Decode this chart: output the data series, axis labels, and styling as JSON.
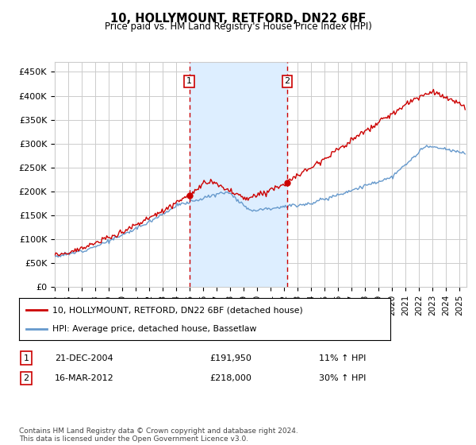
{
  "title": "10, HOLLYMOUNT, RETFORD, DN22 6BF",
  "subtitle": "Price paid vs. HM Land Registry's House Price Index (HPI)",
  "ylabel_ticks": [
    "£0",
    "£50K",
    "£100K",
    "£150K",
    "£200K",
    "£250K",
    "£300K",
    "£350K",
    "£400K",
    "£450K"
  ],
  "ytick_values": [
    0,
    50000,
    100000,
    150000,
    200000,
    250000,
    300000,
    350000,
    400000,
    450000
  ],
  "ylim": [
    0,
    470000
  ],
  "xlim_start": 1995.0,
  "xlim_end": 2025.5,
  "sale1_x": 2004.97,
  "sale1_y": 191950,
  "sale2_x": 2012.21,
  "sale2_y": 218000,
  "shade_x1": 2004.97,
  "shade_x2": 2012.21,
  "legend_red": "10, HOLLYMOUNT, RETFORD, DN22 6BF (detached house)",
  "legend_blue": "HPI: Average price, detached house, Bassetlaw",
  "table_row1_num": "1",
  "table_row1_date": "21-DEC-2004",
  "table_row1_price": "£191,950",
  "table_row1_hpi": "11% ↑ HPI",
  "table_row2_num": "2",
  "table_row2_date": "16-MAR-2012",
  "table_row2_price": "£218,000",
  "table_row2_hpi": "30% ↑ HPI",
  "footnote": "Contains HM Land Registry data © Crown copyright and database right 2024.\nThis data is licensed under the Open Government Licence v3.0.",
  "red_color": "#cc0000",
  "blue_color": "#6699cc",
  "shade_color": "#ddeeff",
  "grid_color": "#cccccc",
  "background_color": "#ffffff"
}
